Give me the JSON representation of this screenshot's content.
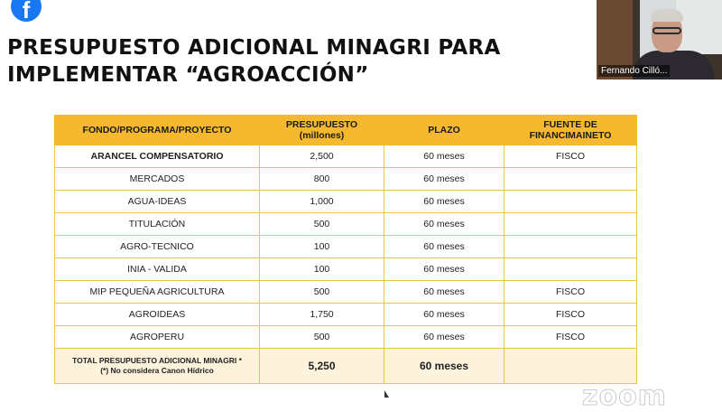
{
  "slide": {
    "title_line1": "PRESUPUESTO ADICIONAL MINAGRI PARA",
    "title_line2": "IMPLEMENTAR “AGROACCIÓN”"
  },
  "video": {
    "participant_name": "Fernando Cilló..."
  },
  "table": {
    "headers": {
      "col1": "FONDO/PROGRAMA/PROYECTO",
      "col2_line1": "PRESUPUESTO",
      "col2_line2": "(millones)",
      "col3": "PLAZO",
      "col4_line1": "FUENTE DE",
      "col4_line2": "FINANCIMAINETO"
    },
    "rows": [
      {
        "fondo": "ARANCEL COMPENSATORIO",
        "presupuesto": "2,500",
        "plazo": "60 meses",
        "fuente": "FISCO"
      },
      {
        "fondo": "MERCADOS",
        "presupuesto": "800",
        "plazo": "60 meses",
        "fuente": ""
      },
      {
        "fondo": "AGUA-IDEAS",
        "presupuesto": "1,000",
        "plazo": "60 meses",
        "fuente": ""
      },
      {
        "fondo": "TITULACIÓN",
        "presupuesto": "500",
        "plazo": "60 meses",
        "fuente": ""
      },
      {
        "fondo": "AGRO-TECNICO",
        "presupuesto": "100",
        "plazo": "60 meses",
        "fuente": ""
      },
      {
        "fondo": "INIA - VALIDA",
        "presupuesto": "100",
        "plazo": "60 meses",
        "fuente": ""
      },
      {
        "fondo": "MIP PEQUEÑA AGRICULTURA",
        "presupuesto": "500",
        "plazo": "60 meses",
        "fuente": "FISCO"
      },
      {
        "fondo": "AGROIDEAS",
        "presupuesto": "1,750",
        "plazo": "60 meses",
        "fuente": "FISCO"
      },
      {
        "fondo": "AGROPERU",
        "presupuesto": "500",
        "plazo": "60 meses",
        "fuente": "FISCO"
      }
    ],
    "total": {
      "label_line1": "TOTAL PRESUPUESTO ADICIONAL MINAGRI *",
      "label_line2": "(*) No considera Canon Hídrico",
      "presupuesto": "5,250",
      "plazo": "60 meses",
      "fuente": ""
    }
  },
  "watermark": "zoom",
  "colors": {
    "header_bg": "#f5b82e",
    "border": "#f2c34a",
    "facebook": "#1877f2"
  }
}
